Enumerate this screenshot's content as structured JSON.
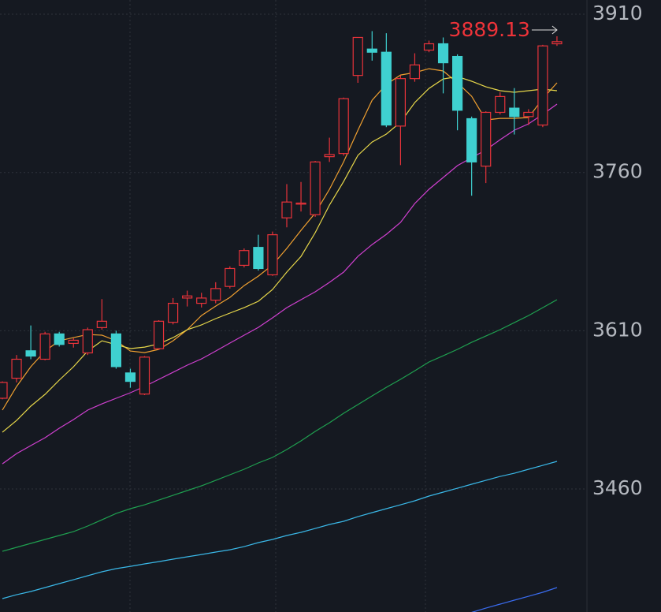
{
  "chart_data": {
    "type": "candlestick",
    "categories": [
      null,
      null,
      null,
      null,
      null,
      null,
      null,
      null,
      null,
      null,
      null,
      null,
      null,
      null,
      null,
      null,
      null,
      null,
      null,
      null,
      null,
      null,
      null,
      null,
      null,
      null,
      null,
      null,
      null,
      null,
      null,
      null,
      null,
      null,
      null,
      null,
      null,
      null,
      null,
      null
    ],
    "open": [
      3546,
      3565,
      3591,
      3583,
      3607,
      3598,
      3589,
      3613,
      3607,
      3570,
      3550,
      3593,
      3618,
      3641,
      3636,
      3639,
      3652,
      3672,
      3689,
      3663,
      3717,
      3730,
      3720,
      3775,
      3778,
      3852,
      3877,
      3874,
      3804,
      3849,
      3876,
      3882,
      3870,
      3811,
      3766,
      3817,
      3821,
      3813,
      3805,
      3882
    ],
    "high": [
      3562,
      3587,
      3615,
      3609,
      3609,
      3603,
      3613,
      3640,
      3610,
      3574,
      3586,
      3620,
      3641,
      3648,
      3646,
      3656,
      3671,
      3688,
      3701,
      3704,
      3749,
      3751,
      3771,
      3793,
      3831,
      3888,
      3894,
      3892,
      3852,
      3873,
      3885,
      3888,
      3872,
      3813,
      3818,
      3836,
      3840,
      3820,
      3881,
      3889.13
    ],
    "low": [
      3545,
      3561,
      3583,
      3582,
      3595,
      3594,
      3587,
      3611,
      3574,
      3556,
      3549,
      3592,
      3616,
      3633,
      3632,
      3636,
      3650,
      3670,
      3667,
      3662,
      3708,
      3723,
      3718,
      3770,
      3776,
      3845,
      3866,
      3803,
      3767,
      3846,
      3874,
      3835,
      3800,
      3738,
      3750,
      3815,
      3796,
      3805,
      3803,
      3880
    ],
    "close": [
      3561,
      3583,
      3586,
      3607,
      3597,
      3601,
      3611,
      3619,
      3576,
      3562,
      3585,
      3619,
      3636,
      3643,
      3641,
      3650,
      3669,
      3686,
      3669,
      3701,
      3732,
      3731,
      3770,
      3777,
      3830,
      3888,
      3874,
      3805,
      3849,
      3862,
      3882,
      3864,
      3819,
      3770,
      3817,
      3832,
      3813,
      3817,
      3880,
      3884
    ],
    "up_color": "#e8333a",
    "down_color": "#3fd0d0",
    "series": [
      {
        "color": "#f0a030",
        "values": [
          3534.8,
          3557.2,
          3575.9,
          3590.8,
          3600.5,
          3603.5,
          3606.5,
          3605.8,
          3600.5,
          3590.8,
          3589.3,
          3592.3,
          3600.5,
          3611.0,
          3624.4,
          3633.4,
          3641.6,
          3652.8,
          3661.8,
          3672.3,
          3688.0,
          3705.2,
          3721.6,
          3744.1,
          3770.2,
          3800.1,
          3828.5,
          3843.5,
          3852.4,
          3854.7,
          3858.4,
          3856.2,
          3845.0,
          3832.3,
          3809.8,
          3811.3,
          3811.3,
          3812.1,
          3830.0,
          3845.0
        ]
      },
      {
        "color": "#e8d84a",
        "values": [
          3513.8,
          3525.0,
          3538.5,
          3549.7,
          3563.2,
          3575.9,
          3590.8,
          3600.5,
          3596.8,
          3593.1,
          3594.5,
          3597.5,
          3603.5,
          3611.0,
          3615.5,
          3621.5,
          3626.7,
          3631.9,
          3637.9,
          3649.1,
          3665.6,
          3680.5,
          3703.0,
          3729.1,
          3751.5,
          3776.2,
          3788.9,
          3796.4,
          3807.6,
          3826.3,
          3839.7,
          3848.7,
          3850.9,
          3846.5,
          3841.2,
          3837.5,
          3836.0,
          3837.5,
          3839.0,
          3837.5
        ]
      },
      {
        "color": "#d040d0",
        "values": [
          3483.9,
          3493.6,
          3501.1,
          3508.6,
          3517.6,
          3525.8,
          3534.8,
          3540.7,
          3546.0,
          3551.2,
          3557.2,
          3563.9,
          3570.6,
          3577.4,
          3583.3,
          3590.8,
          3598.3,
          3605.8,
          3613.2,
          3622.2,
          3631.9,
          3639.4,
          3646.9,
          3655.9,
          3665.6,
          3680.5,
          3691.7,
          3701.4,
          3712.7,
          3730.6,
          3744.1,
          3755.3,
          3766.5,
          3774.0,
          3781.4,
          3791.1,
          3800.1,
          3806.1,
          3815.1,
          3824.8
        ]
      },
      {
        "color": "#1fa050",
        "values": [
          3400.9,
          3404.7,
          3408.4,
          3412.2,
          3415.9,
          3419.6,
          3424.9,
          3430.8,
          3436.8,
          3441.3,
          3445.0,
          3449.5,
          3454.0,
          3458.5,
          3463.0,
          3468.2,
          3473.5,
          3478.7,
          3484.7,
          3489.9,
          3497.4,
          3505.6,
          3514.6,
          3522.8,
          3531.8,
          3540.0,
          3548.2,
          3556.4,
          3563.9,
          3572.1,
          3580.4,
          3586.3,
          3592.3,
          3599.0,
          3605.0,
          3611.0,
          3617.7,
          3624.4,
          3631.9,
          3639.4
        ]
      },
      {
        "color": "#3ab8e8",
        "values": [
          3356.1,
          3359.8,
          3362.8,
          3366.6,
          3370.3,
          3374.0,
          3377.8,
          3381.5,
          3384.5,
          3386.7,
          3389.0,
          3391.2,
          3393.5,
          3395.7,
          3397.9,
          3400.2,
          3402.4,
          3405.4,
          3409.2,
          3412.2,
          3415.9,
          3418.9,
          3422.6,
          3426.4,
          3429.4,
          3433.8,
          3437.6,
          3441.3,
          3445.0,
          3448.8,
          3453.3,
          3457.0,
          3460.7,
          3464.5,
          3468.2,
          3471.9,
          3474.9,
          3478.7,
          3482.4,
          3486.2
        ]
      },
      {
        "color": "#3a6cf0",
        "values": [
          null,
          null,
          null,
          null,
          null,
          null,
          null,
          null,
          null,
          null,
          null,
          null,
          null,
          null,
          null,
          null,
          null,
          null,
          null,
          null,
          null,
          null,
          null,
          null,
          null,
          null,
          null,
          null,
          null,
          null,
          null,
          null,
          null,
          3343.0,
          3347.1,
          3350.9,
          3354.6,
          3358.3,
          3362.1,
          3366.6
        ]
      }
    ],
    "max_marker": 3889.13,
    "ylim": [
      3343.4,
      3923.5
    ],
    "yticks": [
      3460,
      3610,
      3760,
      3910
    ],
    "grid": true
  }
}
